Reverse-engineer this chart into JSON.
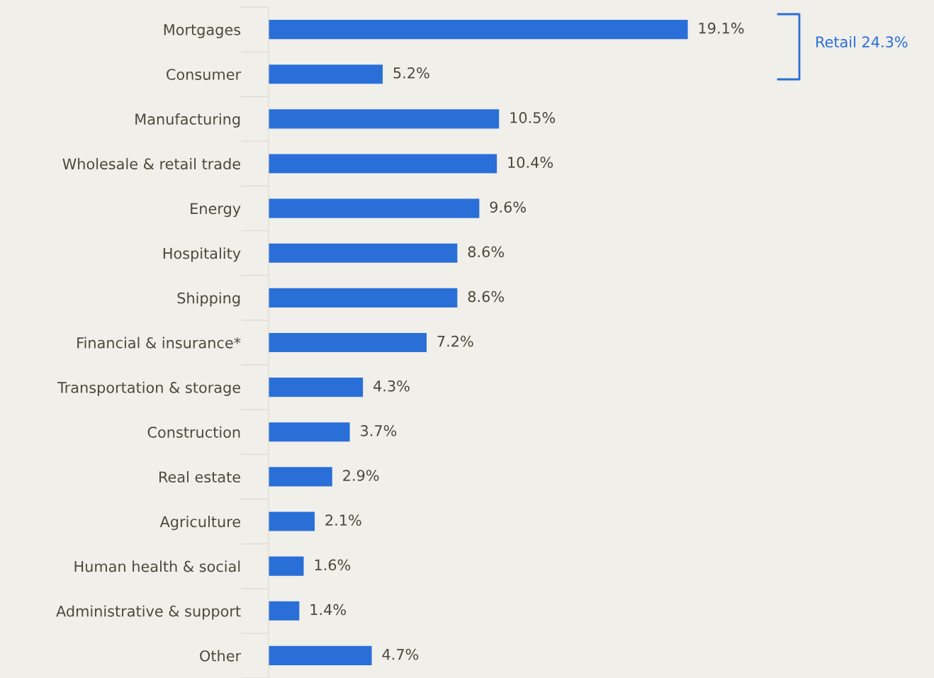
{
  "chart_data": {
    "type": "bar",
    "orientation": "horizontal",
    "categories": [
      "Mortgages",
      "Consumer",
      "Manufacturing",
      "Wholesale & retail trade",
      "Energy",
      "Hospitality",
      "Shipping",
      "Financial & insurance*",
      "Transportation & storage",
      "Construction",
      "Real estate",
      "Agriculture",
      "Human health & social",
      "Administrative & support",
      "Other"
    ],
    "values": [
      19.1,
      5.2,
      10.5,
      10.4,
      9.6,
      8.6,
      8.6,
      7.2,
      4.3,
      3.7,
      2.9,
      2.1,
      1.6,
      1.4,
      4.7
    ],
    "value_labels": [
      "19.1%",
      "5.2%",
      "10.5%",
      "10.4%",
      "9.6%",
      "8.6%",
      "8.6%",
      "7.2%",
      "4.3%",
      "3.7%",
      "2.9%",
      "2.1%",
      "1.6%",
      "1.4%",
      "4.7%"
    ],
    "color": "#2a6fd8",
    "annotations": [
      "Retail 24.3%"
    ],
    "tick_labels": "y",
    "grid": false,
    "legend": false
  }
}
